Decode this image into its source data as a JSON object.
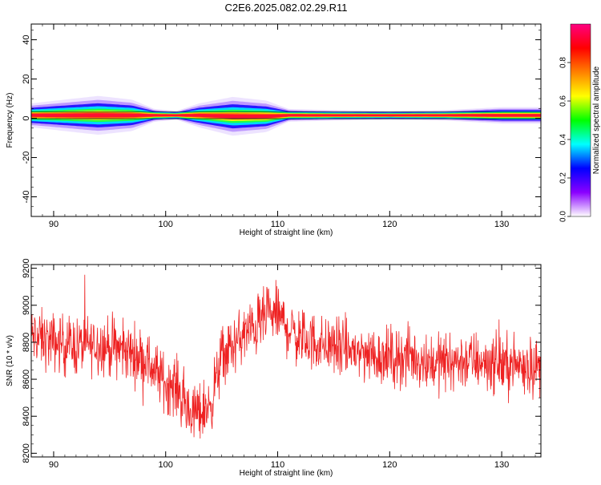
{
  "title": "C2E6.2025.082.02.29.R11",
  "chart_data": [
    {
      "type": "heatmap",
      "xlabel": "Height of straight line (km)",
      "ylabel": "Frequency (Hz)",
      "xlim": [
        88,
        133.5
      ],
      "ylim": [
        -50,
        48
      ],
      "xticks": [
        90,
        100,
        110,
        120,
        130
      ],
      "yticks": [
        40,
        20,
        0,
        -20,
        -40
      ],
      "grid": false,
      "colorbar": {
        "label": "Normalized spectral amplitude",
        "range": [
          0,
          1
        ],
        "ticks": [
          0.0,
          0.2,
          0.4,
          0.6,
          0.8
        ],
        "colormap": [
          "#ffffff",
          "#8a00ff",
          "#0000ff",
          "#00ffff",
          "#00ff00",
          "#ffff00",
          "#ff8000",
          "#ff0000",
          "#ff0080"
        ]
      },
      "series": [
        {
          "x": [
            88,
            91,
            94,
            97,
            99,
            101,
            103,
            106,
            109,
            111,
            115,
            120,
            125,
            130,
            133.5
          ],
          "center_freq": [
            1.5,
            1.5,
            1.5,
            1.5,
            1.5,
            1.5,
            1.5,
            1.0,
            1.0,
            1.5,
            1.5,
            1.5,
            1.5,
            1.5,
            1.5
          ],
          "spread_hz": [
            3,
            4,
            5,
            4,
            1.5,
            1,
            3,
            5,
            4,
            1.5,
            1.2,
            1,
            1.2,
            2,
            2
          ]
        }
      ]
    },
    {
      "type": "line",
      "xlabel": "Height of straight line (km)",
      "ylabel": "SNR (10 * v/v)",
      "xlim": [
        88,
        133.5
      ],
      "ylim": [
        8180,
        9220
      ],
      "xticks": [
        90,
        100,
        110,
        120,
        130
      ],
      "yticks": [
        9200,
        9000,
        8800,
        8600,
        8400,
        8200
      ],
      "grid": false,
      "color": "#ee2222",
      "series": [
        {
          "x": [
            88,
            90,
            92,
            94,
            96,
            98,
            100,
            101,
            102,
            103,
            104,
            105,
            106,
            107,
            108,
            109,
            110,
            111,
            112,
            114,
            116,
            118,
            120,
            122,
            124,
            126,
            128,
            130,
            132,
            133.5
          ],
          "y": [
            8830,
            8800,
            8780,
            8790,
            8760,
            8720,
            8580,
            8560,
            8420,
            8420,
            8460,
            8720,
            8780,
            8840,
            8880,
            8940,
            8950,
            8870,
            8820,
            8790,
            8760,
            8740,
            8720,
            8720,
            8690,
            8700,
            8700,
            8680,
            8680,
            8660
          ],
          "noise": 120
        }
      ]
    }
  ]
}
